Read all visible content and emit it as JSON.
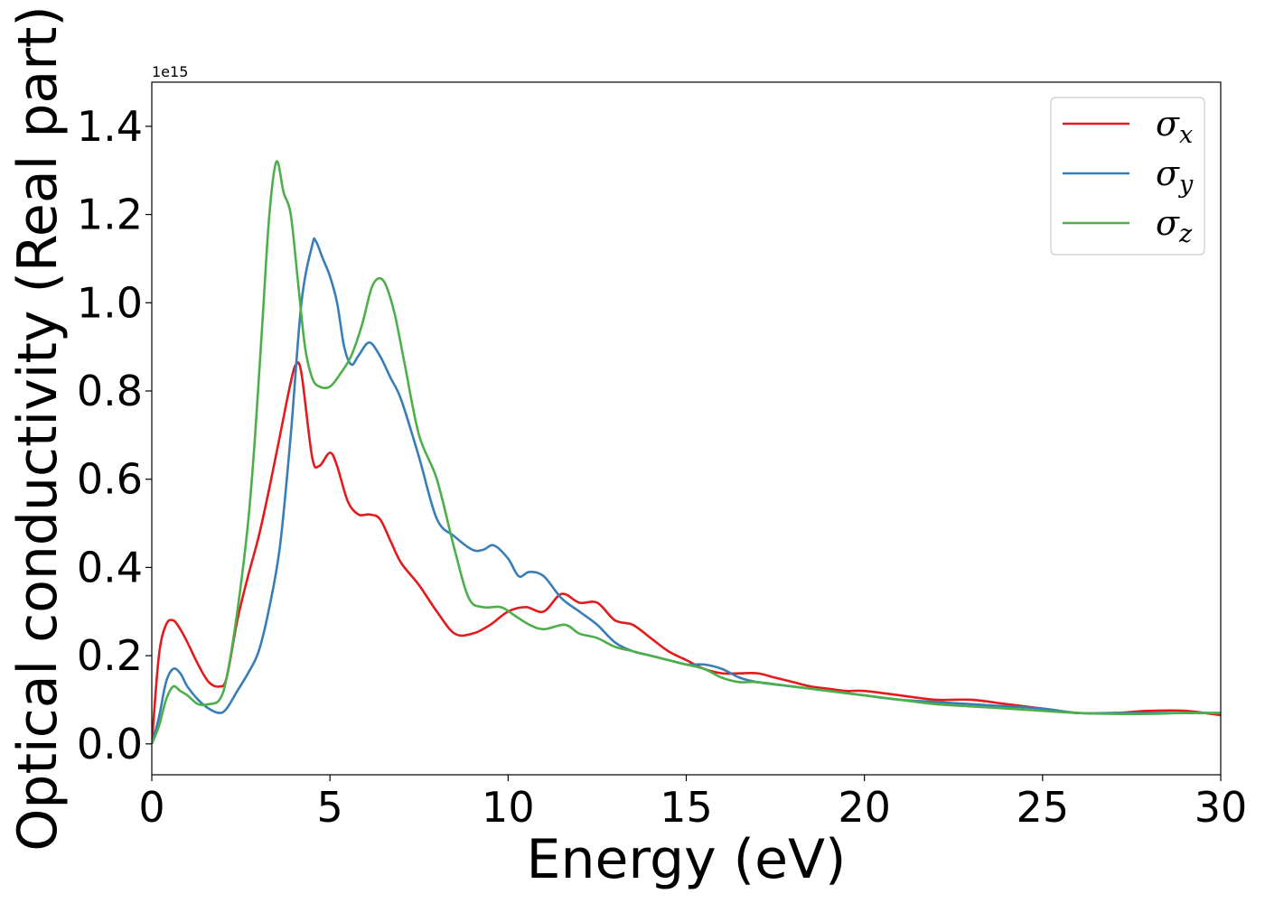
{
  "chart_data": {
    "type": "line",
    "title": "",
    "xlabel": "Energy (eV)",
    "ylabel": "Optical conductivity (Real part)",
    "y_offset_text": "1e15",
    "xlim": [
      0,
      30
    ],
    "ylim": [
      -0.07,
      1.5
    ],
    "xticks": [
      0,
      5,
      10,
      15,
      20,
      25,
      30
    ],
    "xtick_labels": [
      "0",
      "5",
      "10",
      "15",
      "20",
      "25",
      "30"
    ],
    "yticks": [
      0.0,
      0.2,
      0.4,
      0.6,
      0.8,
      1.0,
      1.2,
      1.4
    ],
    "ytick_labels": [
      "0.0",
      "0.2",
      "0.4",
      "0.6",
      "0.8",
      "1.0",
      "1.2",
      "1.4"
    ],
    "grid": false,
    "legend_position": "top-right",
    "series": [
      {
        "name": "σx",
        "legend_base": "σ",
        "legend_sub": "x",
        "color": "#e41a1c",
        "x": [
          0,
          0.2,
          0.4,
          0.6,
          0.8,
          1.0,
          1.3,
          1.6,
          1.9,
          2.1,
          2.4,
          2.7,
          3.0,
          3.3,
          3.6,
          3.9,
          4.05,
          4.2,
          4.5,
          4.7,
          5.0,
          5.2,
          5.5,
          5.8,
          6.1,
          6.4,
          6.7,
          7.0,
          7.5,
          8.0,
          8.5,
          9.0,
          9.5,
          10.0,
          10.5,
          11.0,
          11.5,
          12.0,
          12.5,
          13.0,
          13.5,
          14.0,
          14.5,
          15.0,
          15.5,
          16.0,
          16.5,
          17.0,
          17.5,
          18.0,
          18.5,
          19.0,
          19.5,
          20.0,
          21.0,
          22.0,
          23.0,
          24.0,
          25.0,
          26.0,
          27.0,
          28.0,
          29.0,
          30.0
        ],
        "y": [
          0.0,
          0.2,
          0.27,
          0.28,
          0.26,
          0.23,
          0.18,
          0.14,
          0.13,
          0.15,
          0.28,
          0.38,
          0.47,
          0.58,
          0.7,
          0.82,
          0.86,
          0.84,
          0.65,
          0.63,
          0.66,
          0.63,
          0.55,
          0.52,
          0.52,
          0.51,
          0.46,
          0.41,
          0.36,
          0.3,
          0.25,
          0.25,
          0.27,
          0.3,
          0.31,
          0.3,
          0.34,
          0.32,
          0.32,
          0.28,
          0.27,
          0.24,
          0.21,
          0.19,
          0.17,
          0.16,
          0.16,
          0.16,
          0.15,
          0.14,
          0.13,
          0.125,
          0.12,
          0.12,
          0.11,
          0.1,
          0.1,
          0.09,
          0.08,
          0.07,
          0.07,
          0.075,
          0.075,
          0.065
        ]
      },
      {
        "name": "σy",
        "legend_base": "σ",
        "legend_sub": "y",
        "color": "#377eb8",
        "x": [
          0,
          0.2,
          0.4,
          0.6,
          0.8,
          1.0,
          1.3,
          1.6,
          1.9,
          2.1,
          2.4,
          2.7,
          3.0,
          3.3,
          3.6,
          3.9,
          4.2,
          4.5,
          4.6,
          4.8,
          5.0,
          5.2,
          5.4,
          5.6,
          5.8,
          6.1,
          6.4,
          6.7,
          7.0,
          7.5,
          8.0,
          8.5,
          9.0,
          9.3,
          9.6,
          10.0,
          10.3,
          10.6,
          11.0,
          11.5,
          12.0,
          12.5,
          13.0,
          13.5,
          14.0,
          14.5,
          15.0,
          15.5,
          16.0,
          16.5,
          17.0,
          18.0,
          19.0,
          20.0,
          21.0,
          22.0,
          23.0,
          24.0,
          25.0,
          26.0,
          27.0,
          28.0,
          29.0,
          30.0
        ],
        "y": [
          0.0,
          0.06,
          0.14,
          0.17,
          0.16,
          0.13,
          0.1,
          0.08,
          0.07,
          0.08,
          0.12,
          0.16,
          0.21,
          0.31,
          0.45,
          0.7,
          1.0,
          1.13,
          1.14,
          1.1,
          1.06,
          1.0,
          0.9,
          0.86,
          0.88,
          0.91,
          0.88,
          0.83,
          0.78,
          0.65,
          0.51,
          0.47,
          0.44,
          0.44,
          0.45,
          0.42,
          0.38,
          0.39,
          0.38,
          0.33,
          0.3,
          0.27,
          0.23,
          0.21,
          0.2,
          0.19,
          0.18,
          0.18,
          0.17,
          0.15,
          0.14,
          0.13,
          0.12,
          0.11,
          0.1,
          0.095,
          0.09,
          0.085,
          0.08,
          0.07,
          0.07,
          0.07,
          0.07,
          0.07
        ]
      },
      {
        "name": "σz",
        "legend_base": "σ",
        "legend_sub": "z",
        "color": "#4daf4a",
        "x": [
          0,
          0.2,
          0.4,
          0.6,
          0.8,
          1.0,
          1.3,
          1.6,
          1.9,
          2.1,
          2.4,
          2.7,
          2.9,
          3.1,
          3.3,
          3.5,
          3.7,
          3.9,
          4.1,
          4.3,
          4.5,
          4.7,
          5.0,
          5.3,
          5.6,
          5.9,
          6.2,
          6.5,
          6.8,
          7.1,
          7.5,
          8.0,
          8.5,
          8.9,
          9.3,
          9.8,
          10.2,
          10.6,
          11.0,
          11.6,
          12.0,
          12.5,
          13.0,
          13.5,
          14.0,
          14.5,
          15.0,
          15.5,
          16.0,
          16.5,
          17.0,
          18.0,
          19.0,
          20.0,
          21.0,
          22.0,
          23.0,
          24.0,
          25.0,
          26.0,
          27.0,
          28.0,
          29.0,
          30.0
        ],
        "y": [
          0.0,
          0.04,
          0.1,
          0.13,
          0.12,
          0.11,
          0.09,
          0.09,
          0.1,
          0.15,
          0.3,
          0.5,
          0.7,
          0.95,
          1.2,
          1.32,
          1.25,
          1.2,
          1.05,
          0.9,
          0.83,
          0.81,
          0.81,
          0.84,
          0.88,
          0.95,
          1.04,
          1.05,
          0.98,
          0.86,
          0.7,
          0.6,
          0.44,
          0.33,
          0.31,
          0.31,
          0.29,
          0.27,
          0.26,
          0.27,
          0.25,
          0.24,
          0.22,
          0.21,
          0.2,
          0.19,
          0.18,
          0.17,
          0.15,
          0.14,
          0.14,
          0.13,
          0.12,
          0.11,
          0.1,
          0.09,
          0.085,
          0.08,
          0.075,
          0.07,
          0.068,
          0.068,
          0.07,
          0.07
        ]
      }
    ]
  }
}
